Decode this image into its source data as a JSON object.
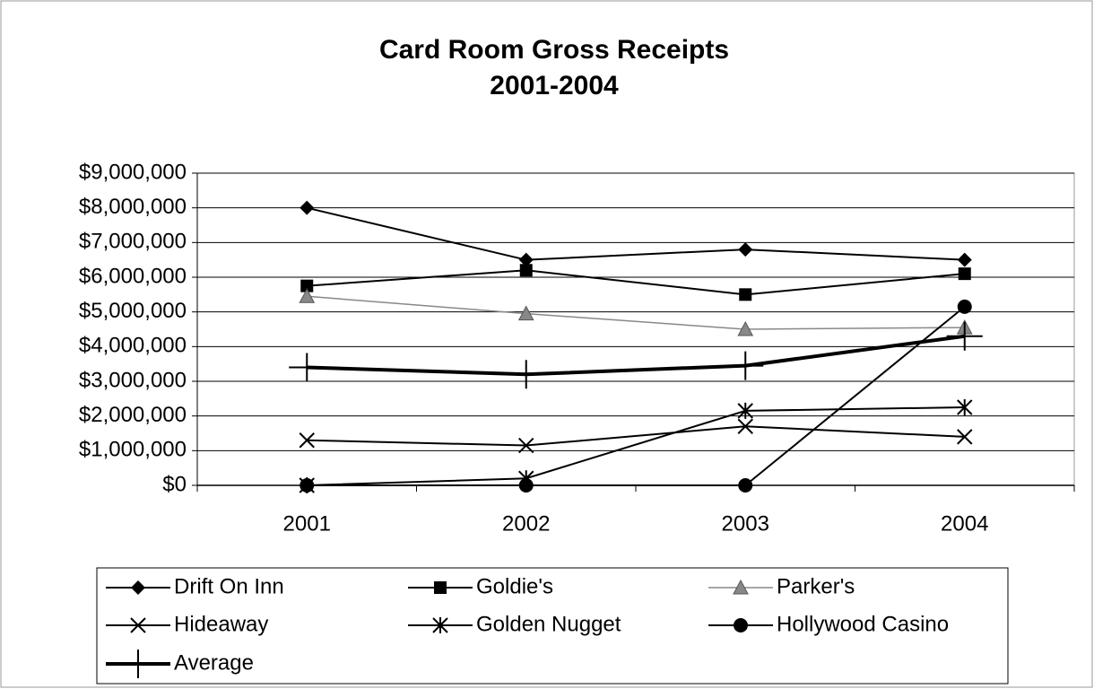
{
  "chart_data": {
    "type": "line",
    "title": "Card Room Gross Receipts",
    "subtitle": "2001-2004",
    "categories": [
      "2001",
      "2002",
      "2003",
      "2004"
    ],
    "ylim": [
      0,
      9000000
    ],
    "yticks": [
      {
        "value": 0,
        "label": "$0"
      },
      {
        "value": 1000000,
        "label": "$1,000,000"
      },
      {
        "value": 2000000,
        "label": "$2,000,000"
      },
      {
        "value": 3000000,
        "label": "$3,000,000"
      },
      {
        "value": 4000000,
        "label": "$4,000,000"
      },
      {
        "value": 5000000,
        "label": "$5,000,000"
      },
      {
        "value": 6000000,
        "label": "$6,000,000"
      },
      {
        "value": 7000000,
        "label": "$7,000,000"
      },
      {
        "value": 8000000,
        "label": "$8,000,000"
      },
      {
        "value": 9000000,
        "label": "$9,000,000"
      }
    ],
    "grid": true,
    "legend": "bottom",
    "series": [
      {
        "name": "Drift On Inn",
        "color": "#000000",
        "marker": "diamond",
        "line_width": 2,
        "values": [
          8000000,
          6500000,
          6800000,
          6500000
        ]
      },
      {
        "name": "Goldie's",
        "color": "#000000",
        "marker": "square",
        "line_width": 2,
        "values": [
          5750000,
          6200000,
          5500000,
          6100000
        ]
      },
      {
        "name": "Parker's",
        "color": "#888888",
        "marker": "triangle",
        "line_width": 1.5,
        "values": [
          5450000,
          4950000,
          4500000,
          4550000
        ]
      },
      {
        "name": "Hideaway",
        "color": "#000000",
        "marker": "x",
        "line_width": 2,
        "values": [
          1300000,
          1150000,
          1700000,
          1400000
        ]
      },
      {
        "name": "Golden Nugget",
        "color": "#000000",
        "marker": "asterisk",
        "line_width": 2,
        "values": [
          0,
          200000,
          2150000,
          2250000
        ]
      },
      {
        "name": "Hollywood Casino",
        "color": "#000000",
        "marker": "circle",
        "line_width": 2,
        "values": [
          0,
          0,
          0,
          5150000
        ]
      },
      {
        "name": "Average",
        "color": "#000000",
        "marker": "plus",
        "line_width": 4,
        "values": [
          3400000,
          3200000,
          3450000,
          4300000
        ]
      }
    ]
  }
}
